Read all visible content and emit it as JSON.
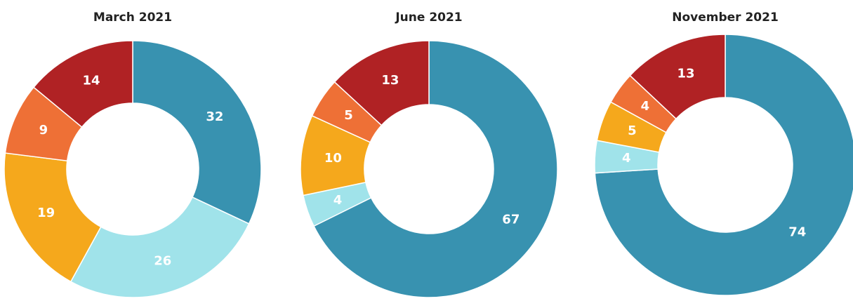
{
  "chart_data": [
    {
      "type": "donut",
      "title": "March 2021",
      "values": [
        32,
        26,
        19,
        9,
        14
      ],
      "colors": [
        "#3892b0",
        "#a0e3ea",
        "#f5a81c",
        "#ee7036",
        "#b02224"
      ]
    },
    {
      "type": "donut",
      "title": "June 2021",
      "values": [
        67,
        4,
        10,
        5,
        13
      ],
      "colors": [
        "#3892b0",
        "#a0e3ea",
        "#f5a81c",
        "#ee7036",
        "#b02224"
      ]
    },
    {
      "type": "donut",
      "title": "November 2021",
      "values": [
        74,
        4,
        5,
        4,
        13
      ],
      "colors": [
        "#3892b0",
        "#a0e3ea",
        "#f5a81c",
        "#ee7036",
        "#b02224"
      ]
    }
  ]
}
